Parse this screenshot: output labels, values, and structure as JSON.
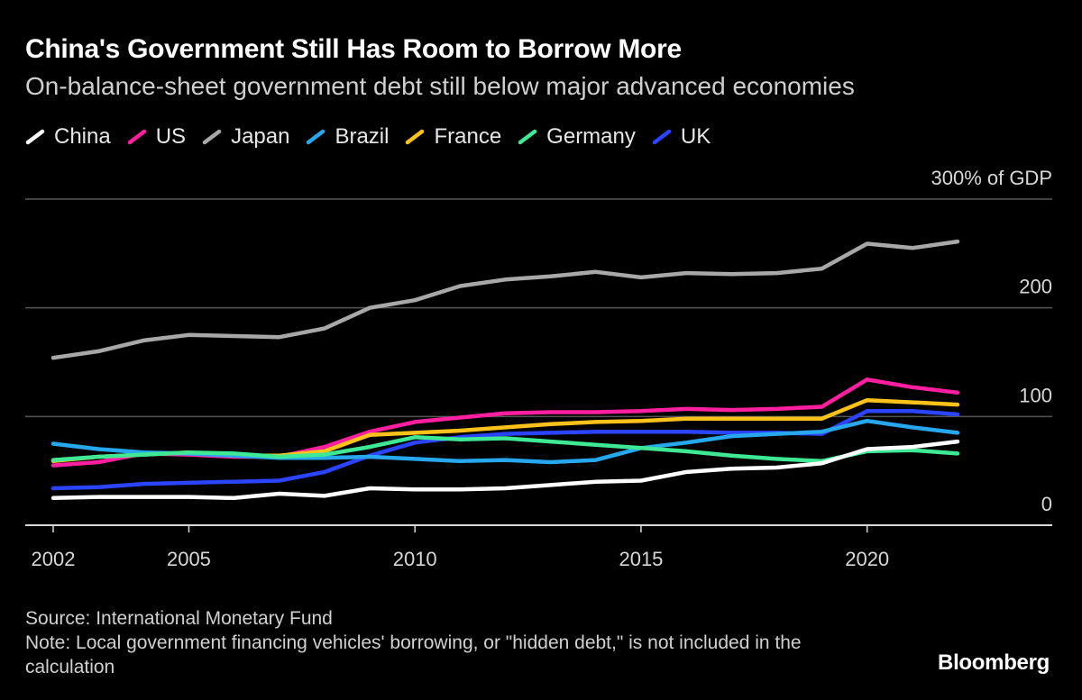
{
  "header": {
    "title": "China's Government Still Has Room to Borrow More",
    "subtitle": "On-balance-sheet government debt still below major advanced economies"
  },
  "footer": {
    "source": "Source: International Monetary Fund",
    "note": "Note: Local government financing vehicles' borrowing, or \"hidden debt,\" is not included in the calculation",
    "brand": "Bloomberg"
  },
  "chart_data": {
    "type": "line",
    "title": "China's Government Still Has Room to Borrow More",
    "subtitle": "On-balance-sheet government debt still below major advanced economies",
    "xlabel": "",
    "ylabel": "% of GDP",
    "x": [
      2002,
      2003,
      2004,
      2005,
      2006,
      2007,
      2008,
      2009,
      2010,
      2011,
      2012,
      2013,
      2014,
      2015,
      2016,
      2017,
      2018,
      2019,
      2020,
      2021,
      2022
    ],
    "x_ticks": [
      "2002",
      "2005",
      "2010",
      "2015",
      "2020"
    ],
    "y_ticks": [
      "0",
      "100",
      "200",
      "300% of GDP"
    ],
    "y_tick_values": [
      0,
      100,
      200,
      300
    ],
    "ylim": [
      0,
      300
    ],
    "xlim": [
      2002,
      2023
    ],
    "legend_position": "top-left",
    "series": [
      {
        "name": "Japan",
        "color": "#a8a8a8",
        "values": [
          154,
          160,
          170,
          175,
          174,
          173,
          181,
          200,
          207,
          220,
          226,
          229,
          233,
          228,
          232,
          231,
          232,
          236,
          259,
          255,
          261
        ]
      },
      {
        "name": "US",
        "color": "#ff1fa0",
        "values": [
          55,
          58,
          66,
          65,
          63,
          63,
          72,
          86,
          95,
          99,
          103,
          104,
          104,
          105,
          107,
          106,
          107,
          109,
          134,
          127,
          122
        ]
      },
      {
        "name": "France",
        "color": "#ffc21a",
        "values": [
          59,
          63,
          65,
          67,
          64,
          64,
          68,
          83,
          85,
          87,
          90,
          93,
          95,
          96,
          98,
          98,
          98,
          98,
          115,
          113,
          111
        ]
      },
      {
        "name": "UK",
        "color": "#2a44ff",
        "values": [
          34,
          35,
          38,
          39,
          40,
          41,
          49,
          64,
          76,
          81,
          84,
          85,
          86,
          86,
          86,
          85,
          85,
          84,
          105,
          105,
          102
        ]
      },
      {
        "name": "Brazil",
        "color": "#27a7ee",
        "values": [
          75,
          70,
          67,
          66,
          64,
          62,
          62,
          63,
          61,
          59,
          60,
          58,
          60,
          71,
          76,
          82,
          84,
          86,
          96,
          90,
          85
        ]
      },
      {
        "name": "Germany",
        "color": "#3ee895",
        "values": [
          60,
          63,
          65,
          67,
          66,
          63,
          65,
          72,
          81,
          79,
          80,
          77,
          74,
          71,
          68,
          64,
          61,
          59,
          68,
          69,
          66
        ]
      },
      {
        "name": "China",
        "color": "#ffffff",
        "values": [
          25,
          26,
          26,
          26,
          25,
          29,
          27,
          34,
          33,
          33,
          34,
          37,
          40,
          41,
          49,
          52,
          53,
          57,
          70,
          72,
          77
        ]
      }
    ]
  }
}
